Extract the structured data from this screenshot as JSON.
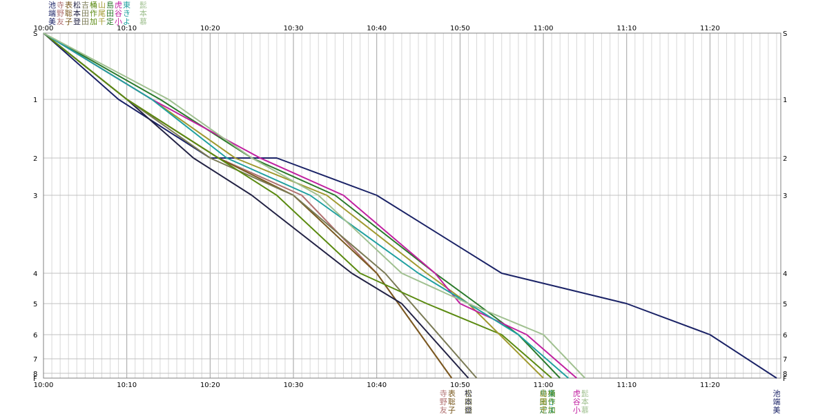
{
  "chart_data": {
    "type": "line",
    "title": "",
    "xlabel": "",
    "ylabel": "",
    "x_start": "10:00",
    "x_end": "11:28",
    "x_ticks": [
      "10:00",
      "10:10",
      "10:20",
      "10:30",
      "10:40",
      "10:50",
      "11:00",
      "11:10",
      "11:20"
    ],
    "y_ticks": [
      "S",
      "1",
      "2",
      "3",
      "4",
      "5",
      "6",
      "7",
      "8",
      "F"
    ],
    "grid": true,
    "legend_rows": [
      [
        "池",
        "寺",
        "表",
        "松",
        "吉",
        "桶",
        "山",
        "島",
        "虎",
        "東",
        "",
        "髭"
      ],
      [
        "端",
        "野",
        "聡",
        "本",
        "田",
        "作",
        "尾",
        "田",
        "谷",
        "き",
        "",
        "本"
      ],
      [
        "美",
        "友",
        "子",
        "登",
        "田",
        "加",
        "千",
        "定",
        "小",
        "よ",
        "",
        "慕"
      ]
    ],
    "series": [
      {
        "name": "池端美",
        "color": "#1a2266",
        "points": [
          [
            "10:00",
            "S"
          ],
          [
            "10:09",
            "1"
          ],
          [
            "10:20",
            "2"
          ],
          [
            "10:28",
            "2"
          ],
          [
            "10:40",
            "3"
          ],
          [
            "10:55",
            "4"
          ],
          [
            "11:10",
            "5"
          ],
          [
            "11:20",
            "6"
          ],
          [
            "11:28",
            "F"
          ]
        ]
      },
      {
        "name": "寺野友",
        "color": "#b07070",
        "points": [
          [
            "10:00",
            "S"
          ],
          [
            "10:10",
            "1"
          ],
          [
            "10:21",
            "2"
          ],
          [
            "10:31",
            "3"
          ],
          [
            "10:40",
            "4"
          ],
          [
            "10:49",
            "F"
          ]
        ]
      },
      {
        "name": "表聡子",
        "color": "#7a5a20",
        "points": [
          [
            "10:00",
            "S"
          ],
          [
            "10:10",
            "1"
          ],
          [
            "10:21",
            "2"
          ],
          [
            "10:30",
            "3"
          ],
          [
            "10:40",
            "4"
          ],
          [
            "10:49",
            "F"
          ]
        ]
      },
      {
        "name": "松本登",
        "color": "#222244",
        "points": [
          [
            "10:00",
            "S"
          ],
          [
            "10:10",
            "1"
          ],
          [
            "10:18",
            "2"
          ],
          [
            "10:25",
            "3"
          ],
          [
            "10:37",
            "4"
          ],
          [
            "10:43",
            "5"
          ],
          [
            "10:51",
            "F"
          ]
        ]
      },
      {
        "name": "吉田田",
        "color": "#7a7a55",
        "points": [
          [
            "10:00",
            "S"
          ],
          [
            "10:10",
            "1"
          ],
          [
            "10:20",
            "2"
          ],
          [
            "10:30",
            "3"
          ],
          [
            "10:41",
            "4"
          ],
          [
            "10:52",
            "F"
          ]
        ]
      },
      {
        "name": "桶作加",
        "color": "#5a8a10",
        "points": [
          [
            "10:00",
            "S"
          ],
          [
            "10:10",
            "1"
          ],
          [
            "10:21",
            "2"
          ],
          [
            "10:28",
            "3"
          ],
          [
            "10:38",
            "4"
          ],
          [
            "10:46",
            "5"
          ],
          [
            "10:55",
            "6"
          ],
          [
            "11:01",
            "F"
          ]
        ]
      },
      {
        "name": "山尾千",
        "color": "#a09a30",
        "points": [
          [
            "10:00",
            "S"
          ],
          [
            "10:13",
            "1"
          ],
          [
            "10:23",
            "2"
          ],
          [
            "10:34",
            "3"
          ],
          [
            "10:46",
            "4"
          ],
          [
            "10:51",
            "5"
          ],
          [
            "11:00",
            "F"
          ]
        ]
      },
      {
        "name": "島田定",
        "color": "#2b7a2b",
        "points": [
          [
            "10:00",
            "S"
          ],
          [
            "10:14",
            "1"
          ],
          [
            "10:25",
            "2"
          ],
          [
            "10:35",
            "3"
          ],
          [
            "10:47",
            "4"
          ],
          [
            "10:52",
            "5"
          ],
          [
            "10:57",
            "6"
          ],
          [
            "11:02",
            "F"
          ]
        ]
      },
      {
        "name": "虎谷小",
        "color": "#c020a0",
        "points": [
          [
            "10:00",
            "S"
          ],
          [
            "10:13",
            "1"
          ],
          [
            "10:26",
            "2"
          ],
          [
            "10:36",
            "3"
          ],
          [
            "10:47",
            "4"
          ],
          [
            "10:50",
            "5"
          ],
          [
            "10:58",
            "6"
          ],
          [
            "11:04",
            "F"
          ]
        ]
      },
      {
        "name": "東きよ",
        "color": "#20a0a0",
        "points": [
          [
            "10:00",
            "S"
          ],
          [
            "10:13",
            "1"
          ],
          [
            "10:22",
            "2"
          ],
          [
            "10:32",
            "3"
          ],
          [
            "10:45",
            "4"
          ],
          [
            "10:51",
            "5"
          ],
          [
            "10:57",
            "6"
          ],
          [
            "11:03",
            "F"
          ]
        ]
      },
      {
        "name": "髭本慕",
        "color": "#a0c090",
        "points": [
          [
            "10:00",
            "S"
          ],
          [
            "10:15",
            "1"
          ],
          [
            "10:25",
            "2"
          ],
          [
            "10:33",
            "3"
          ],
          [
            "10:43",
            "4"
          ],
          [
            "10:51",
            "5"
          ],
          [
            "11:00",
            "6"
          ],
          [
            "11:05",
            "F"
          ]
        ]
      }
    ],
    "end_labels": [
      {
        "x": "10:48",
        "chars": [
          "寺",
          "野",
          "友"
        ],
        "color": "#b07070"
      },
      {
        "x": "10:49",
        "chars": [
          "表",
          "聡",
          "子"
        ],
        "color": "#7a5a20"
      },
      {
        "x": "10:51",
        "chars": [
          "松",
          "本",
          "登"
        ],
        "color": "#222244"
      },
      {
        "x": "10:51",
        "chars": [
          "吉",
          "田",
          "田"
        ],
        "color": "#7a7a55"
      },
      {
        "x": "11:00",
        "chars": [
          "島",
          "田",
          "定"
        ],
        "color": "#2b7a2b"
      },
      {
        "x": "11:00",
        "chars": [
          "山",
          "尾",
          "千"
        ],
        "color": "#a09a30"
      },
      {
        "x": "11:01",
        "chars": [
          "東",
          "き",
          "よ"
        ],
        "color": "#20a0a0"
      },
      {
        "x": "11:01",
        "chars": [
          "桶",
          "作",
          "加"
        ],
        "color": "#5a8a10"
      },
      {
        "x": "11:04",
        "chars": [
          "虎",
          "谷",
          "小"
        ],
        "color": "#c020a0"
      },
      {
        "x": "11:05",
        "chars": [
          "髭",
          "本",
          "慕"
        ],
        "color": "#a0c090"
      },
      {
        "x": "11:28",
        "chars": [
          "池",
          "端",
          "美"
        ],
        "color": "#1a2266"
      }
    ]
  }
}
